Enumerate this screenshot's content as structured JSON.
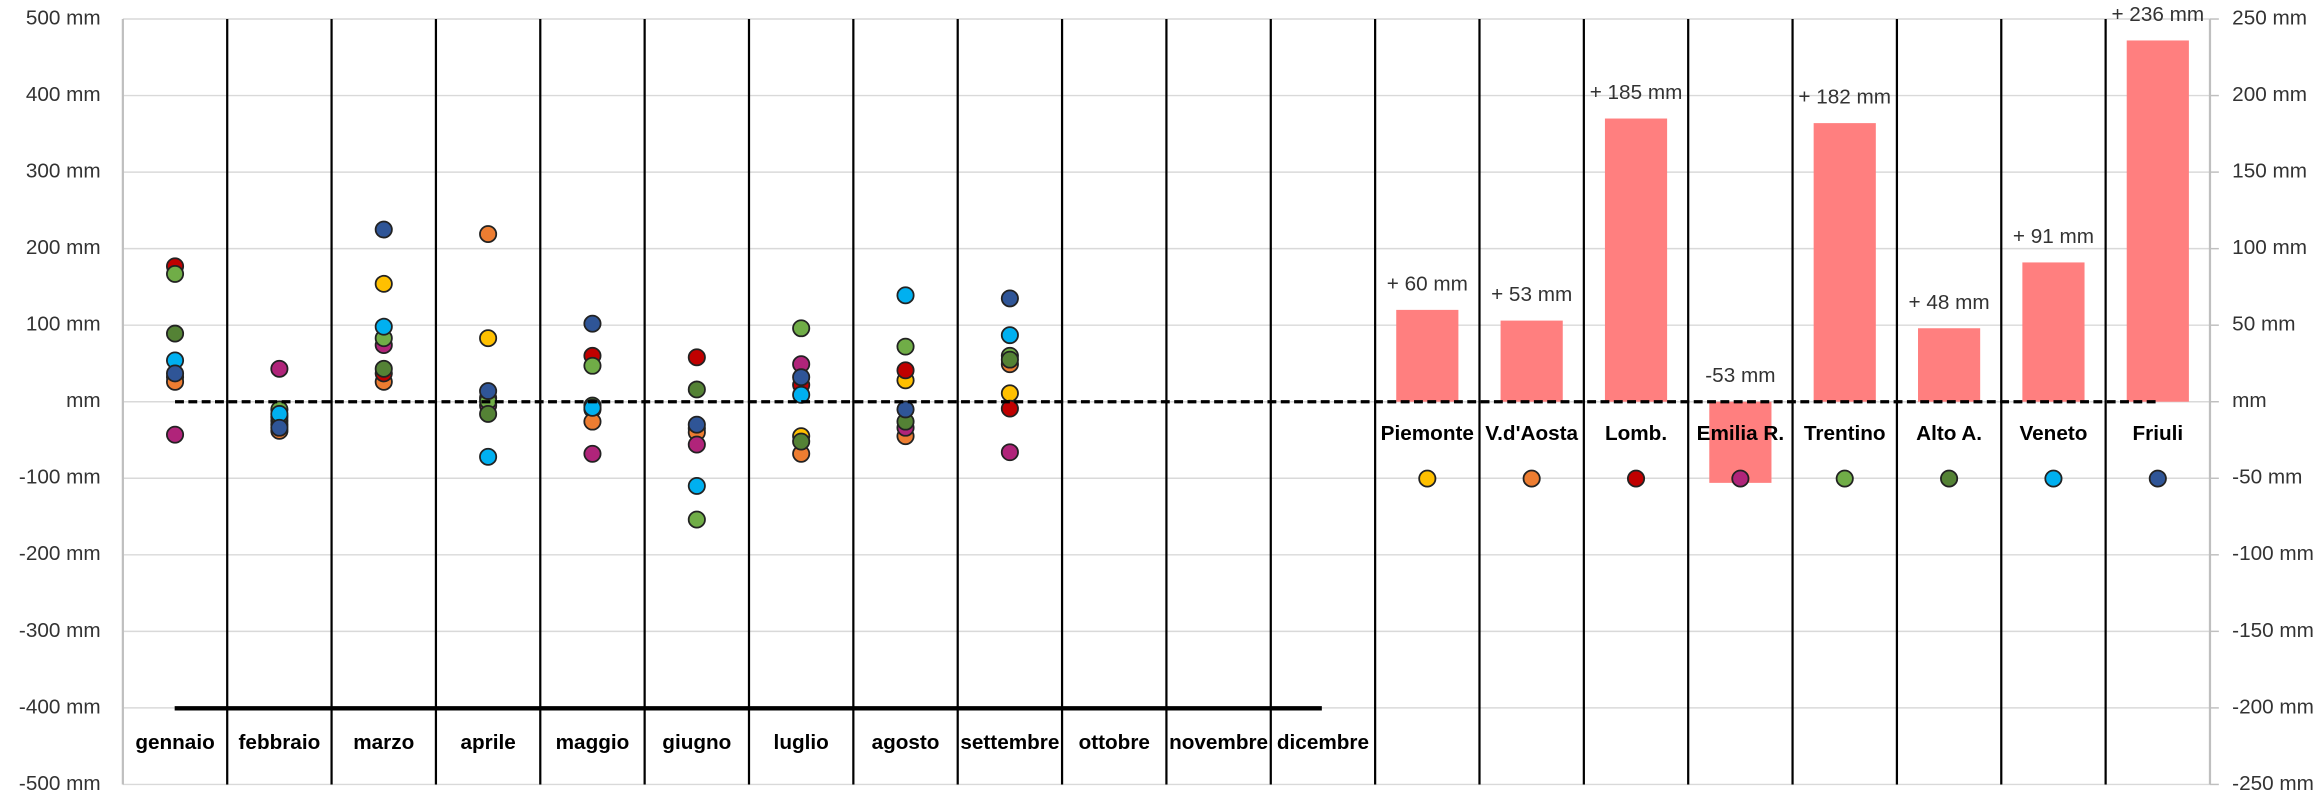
{
  "chart_data": [
    {
      "type": "dot",
      "categories": [
        "gennaio",
        "febbraio",
        "marzo",
        "aprile",
        "maggio",
        "giugno",
        "luglio",
        "agosto",
        "settembre",
        "ottobre",
        "novembre",
        "dicembre"
      ],
      "series": [
        {
          "color": "#ffc000",
          "values": [
            32,
            -25,
            154,
            83,
            -10,
            -35,
            -45,
            28,
            11,
            null,
            null,
            null
          ]
        },
        {
          "color": "#ed7d31",
          "values": [
            26,
            -38,
            26,
            219,
            -26,
            -40,
            -68,
            -45,
            49,
            null,
            null,
            null
          ]
        },
        {
          "color": "#c00000",
          "values": [
            177,
            -30,
            37,
            5,
            60,
            58,
            22,
            41,
            -9,
            null,
            null,
            null
          ]
        },
        {
          "color": "#b0247a",
          "values": [
            -43,
            43,
            74,
            -5,
            -68,
            -56,
            49,
            -34,
            -66,
            null,
            null,
            null
          ]
        },
        {
          "color": "#70ad47",
          "values": [
            167,
            -10,
            83,
            1,
            47,
            -154,
            96,
            72,
            60,
            null,
            null,
            null
          ]
        },
        {
          "color": "#548235",
          "values": [
            89,
            -20,
            43,
            -16,
            -5,
            16,
            -52,
            -26,
            55,
            null,
            null,
            null
          ]
        },
        {
          "color": "#00b0f0",
          "values": [
            54,
            -16,
            98,
            -72,
            -8,
            -110,
            9,
            139,
            87,
            null,
            null,
            null
          ]
        },
        {
          "color": "#2f5597",
          "values": [
            37,
            -34,
            225,
            14,
            102,
            -30,
            32,
            -10,
            135,
            null,
            null,
            null
          ]
        }
      ],
      "ylim": [
        -500,
        500
      ],
      "yticks": [
        {
          "value": -500,
          "label": "-500 mm"
        },
        {
          "value": -400,
          "label": "-400 mm"
        },
        {
          "value": -300,
          "label": "-300 mm"
        },
        {
          "value": -200,
          "label": "-200 mm"
        },
        {
          "value": -100,
          "label": "-100 mm"
        },
        {
          "value": 0,
          "label": "mm"
        },
        {
          "value": 100,
          "label": "100 mm"
        },
        {
          "value": 200,
          "label": "200 mm"
        },
        {
          "value": 300,
          "label": "300 mm"
        },
        {
          "value": 400,
          "label": "400 mm"
        },
        {
          "value": 500,
          "label": "500 mm"
        }
      ],
      "grid": true
    },
    {
      "type": "bar",
      "categories": [
        "Piemonte",
        "V.d'Aosta",
        "Lomb.",
        "Emilia R.",
        "Trentino",
        "Alto A.",
        "Veneto",
        "Friuli"
      ],
      "values": [
        60,
        53,
        185,
        -53,
        182,
        48,
        91,
        236
      ],
      "value_labels": [
        "+ 60 mm",
        "+ 53 mm",
        "+ 185 mm",
        "-53 mm",
        "+ 182 mm",
        "+ 48 mm",
        "+ 91 mm",
        "+ 236 mm"
      ],
      "color": "#ff7f7f",
      "ylim": [
        -250,
        250
      ],
      "yticks": [
        {
          "value": -250,
          "label": "-250 mm"
        },
        {
          "value": -200,
          "label": "-200 mm"
        },
        {
          "value": -150,
          "label": "-150 mm"
        },
        {
          "value": -100,
          "label": "-100 mm"
        },
        {
          "value": -50,
          "label": "-50 mm"
        },
        {
          "value": 0,
          "label": "mm"
        },
        {
          "value": 50,
          "label": "50 mm"
        },
        {
          "value": 100,
          "label": "100 mm"
        },
        {
          "value": 150,
          "label": "150 mm"
        },
        {
          "value": 200,
          "label": "200 mm"
        },
        {
          "value": 250,
          "label": "250 mm"
        }
      ]
    }
  ]
}
